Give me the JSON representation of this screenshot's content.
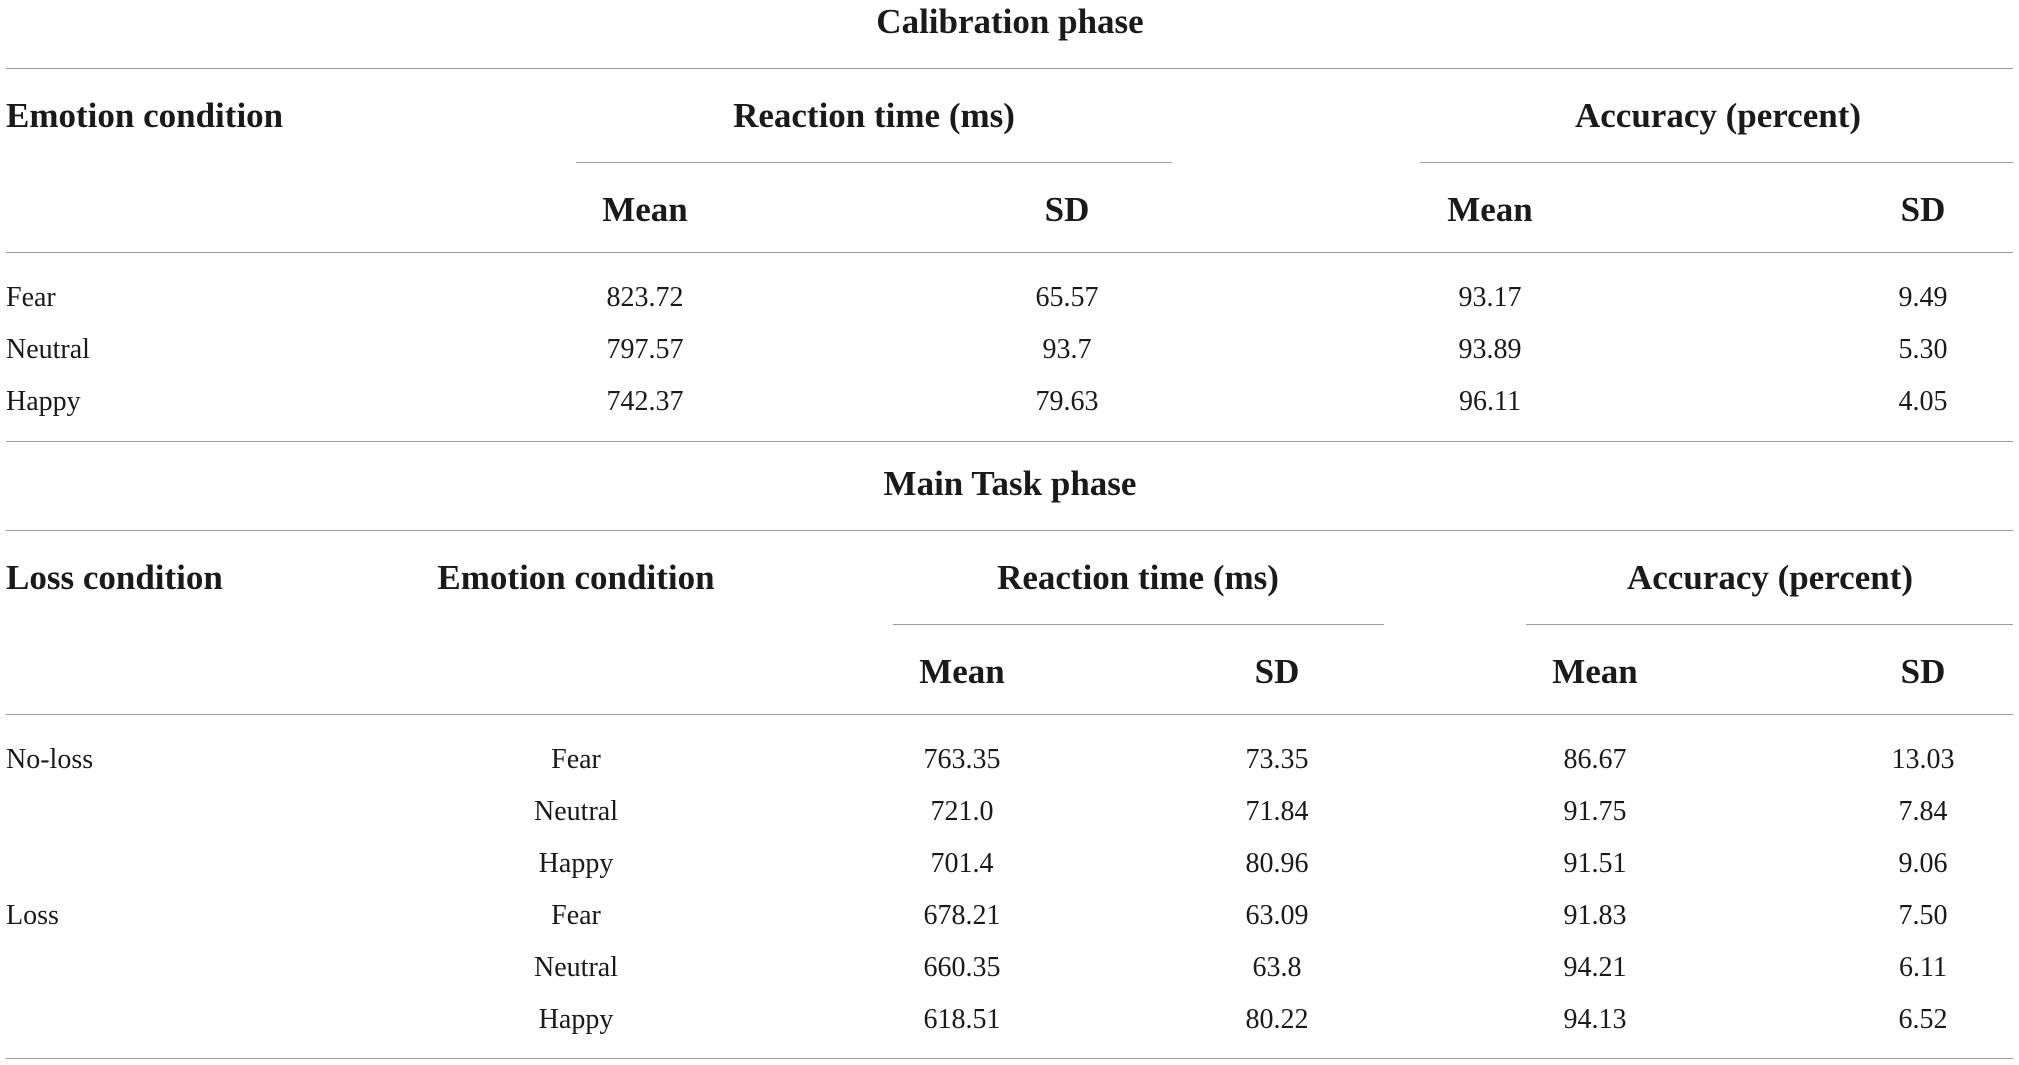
{
  "calibration": {
    "title": "Calibration phase",
    "headers": {
      "emotion_condition": "Emotion condition",
      "reaction_time": "Reaction time (ms)",
      "accuracy": "Accuracy (percent)",
      "rt_mean": "Mean",
      "rt_sd": "SD",
      "acc_mean": "Mean",
      "acc_sd": "SD"
    },
    "rows": [
      {
        "emotion": "Fear",
        "rt_mean": "823.72",
        "rt_sd": "65.57",
        "acc_mean": "93.17",
        "acc_sd": "9.49"
      },
      {
        "emotion": "Neutral",
        "rt_mean": "797.57",
        "rt_sd": "93.7",
        "acc_mean": "93.89",
        "acc_sd": "5.30"
      },
      {
        "emotion": "Happy",
        "rt_mean": "742.37",
        "rt_sd": "79.63",
        "acc_mean": "96.11",
        "acc_sd": "4.05"
      }
    ]
  },
  "main_task": {
    "title": "Main Task phase",
    "headers": {
      "loss_condition": "Loss condition",
      "emotion_condition": "Emotion condition",
      "reaction_time": "Reaction time (ms)",
      "accuracy": "Accuracy (percent)",
      "rt_mean": "Mean",
      "rt_sd": "SD",
      "acc_mean": "Mean",
      "acc_sd": "SD"
    },
    "rows": [
      {
        "loss": "No-loss",
        "emotion": "Fear",
        "rt_mean": "763.35",
        "rt_sd": "73.35",
        "acc_mean": "86.67",
        "acc_sd": "13.03"
      },
      {
        "loss": "",
        "emotion": "Neutral",
        "rt_mean": "721.0",
        "rt_sd": "71.84",
        "acc_mean": "91.75",
        "acc_sd": "7.84"
      },
      {
        "loss": "",
        "emotion": "Happy",
        "rt_mean": "701.4",
        "rt_sd": "80.96",
        "acc_mean": "91.51",
        "acc_sd": "9.06"
      },
      {
        "loss": "Loss",
        "emotion": "Fear",
        "rt_mean": "678.21",
        "rt_sd": "63.09",
        "acc_mean": "91.83",
        "acc_sd": "7.50"
      },
      {
        "loss": "",
        "emotion": "Neutral",
        "rt_mean": "660.35",
        "rt_sd": "63.8",
        "acc_mean": "94.21",
        "acc_sd": "6.11"
      },
      {
        "loss": "",
        "emotion": "Happy",
        "rt_mean": "618.51",
        "rt_sd": "80.22",
        "acc_mean": "94.13",
        "acc_sd": "6.52"
      }
    ]
  }
}
